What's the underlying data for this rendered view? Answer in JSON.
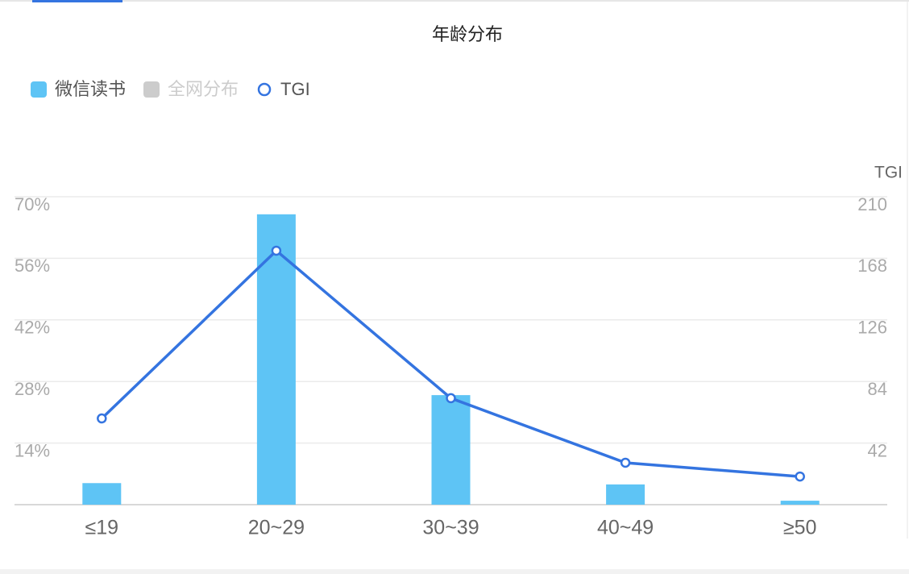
{
  "chart_data": {
    "type": "bar-line",
    "title": "年龄分布",
    "categories": [
      "≤19",
      "20~29",
      "30~39",
      "40~49",
      "≥50"
    ],
    "series": [
      {
        "name": "微信读书",
        "color": "#5ec4f5",
        "type": "bar",
        "values": [
          4.9,
          66.0,
          24.9,
          4.6,
          0.9
        ]
      },
      {
        "name": "全网分布",
        "color": "#cccccc",
        "type": "bar",
        "hidden": true
      },
      {
        "name": "TGI",
        "color": "#3474e0",
        "type": "line",
        "axis": "y2",
        "values": [
          58.8,
          173.2,
          72.6,
          28.6,
          19.2
        ]
      }
    ],
    "ylim": [
      0,
      70
    ],
    "yticks": [
      {
        "value": 14,
        "label": "14%"
      },
      {
        "value": 28,
        "label": "28%"
      },
      {
        "value": 42,
        "label": "42%"
      },
      {
        "value": 56,
        "label": "56%"
      },
      {
        "value": 70,
        "label": "70%"
      }
    ],
    "y2label": "TGI",
    "y2lim": [
      0,
      210
    ],
    "y2ticks": [
      42,
      84,
      126,
      168,
      210
    ],
    "grid": true
  }
}
